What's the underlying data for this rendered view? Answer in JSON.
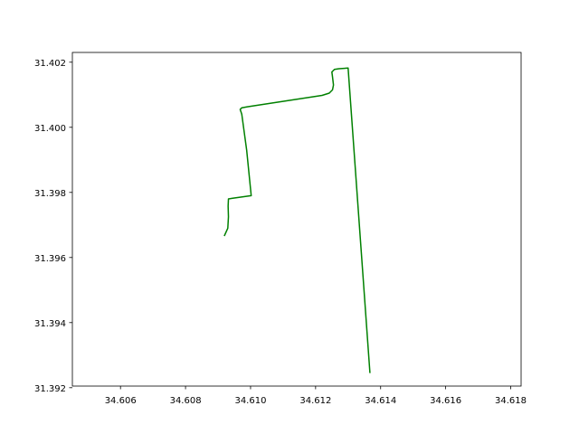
{
  "chart_data": {
    "type": "line",
    "title": "",
    "xlabel": "",
    "ylabel": "",
    "xlim": [
      34.60452,
      34.61832
    ],
    "ylim": [
      31.39205,
      31.4023
    ],
    "grid": false,
    "xticks": [
      34.606,
      34.608,
      34.61,
      34.612,
      34.614,
      34.616,
      34.618
    ],
    "xtick_labels": [
      "34.606",
      "34.608",
      "34.610",
      "34.612",
      "34.614",
      "34.616",
      "34.618"
    ],
    "yticks": [
      31.392,
      31.394,
      31.396,
      31.398,
      31.4,
      31.402
    ],
    "ytick_labels": [
      "31.392",
      "31.394",
      "31.396",
      "31.398",
      "31.400",
      "31.402"
    ],
    "series": [
      {
        "color": "#008000",
        "x": [
          34.6092,
          34.6093,
          34.60932,
          34.60931,
          34.60932,
          34.60945,
          34.61002,
          34.60988,
          34.60973,
          34.60968,
          34.60973,
          34.6099,
          34.6122,
          34.61242,
          34.61252,
          34.61255,
          34.61252,
          34.6125,
          34.61258,
          34.61272,
          34.613,
          34.61367
        ],
        "y": [
          31.39668,
          31.3969,
          31.39725,
          31.39758,
          31.3978,
          31.39782,
          31.3979,
          31.3993,
          31.4004,
          31.40055,
          31.4006,
          31.40063,
          31.40098,
          31.40105,
          31.40115,
          31.4013,
          31.40155,
          31.4017,
          31.40178,
          31.4018,
          31.40182,
          31.39247
        ]
      }
    ]
  }
}
